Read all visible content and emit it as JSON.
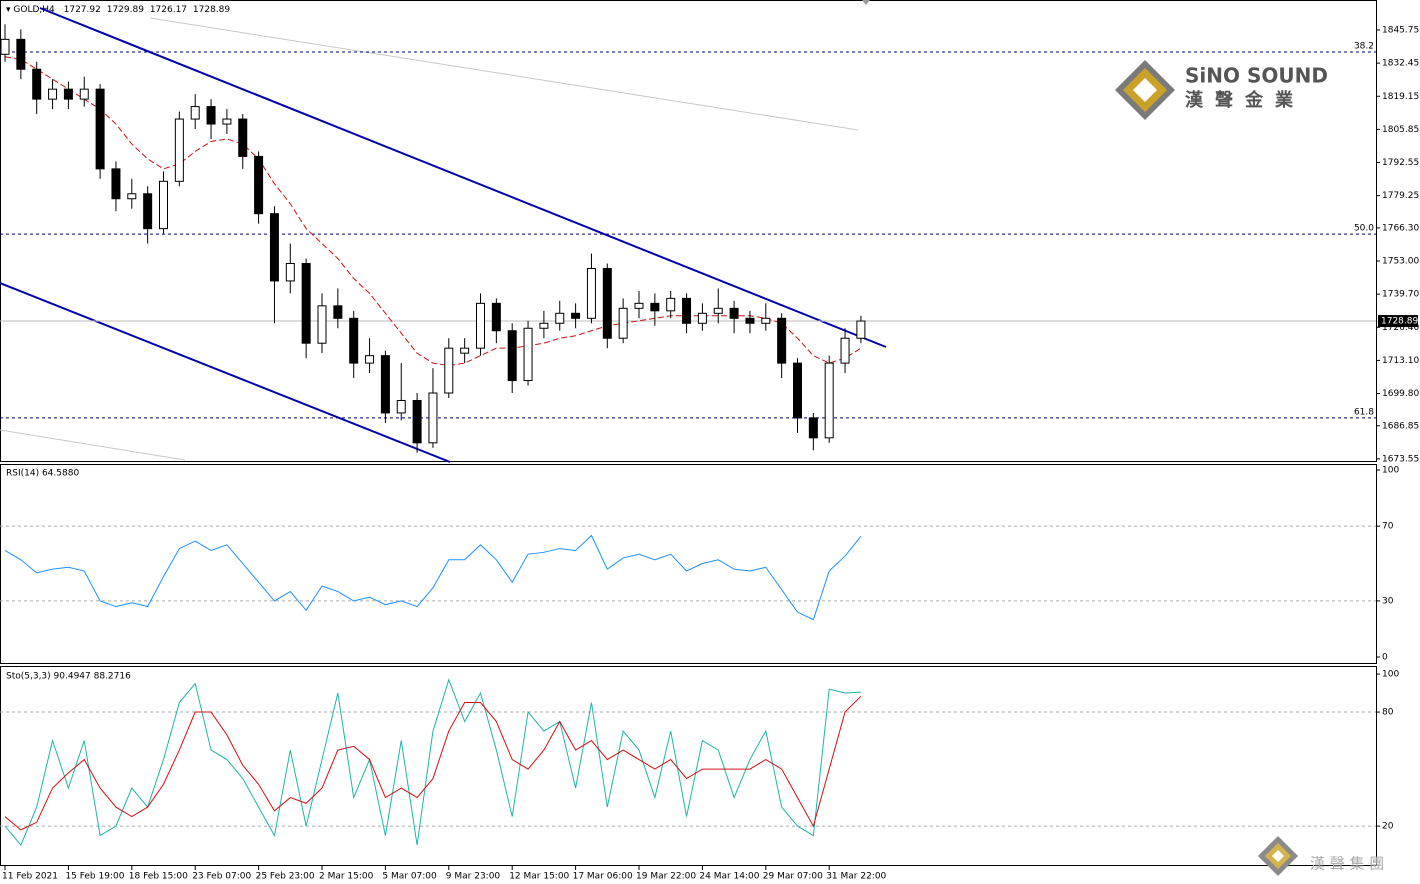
{
  "chart_data": {
    "type": "candlestick",
    "symbol": "GOLD,H4",
    "ohlc": [
      1727.92,
      1729.89,
      1726.17,
      1728.89
    ],
    "categories": [
      "11 Feb 2021",
      null,
      null,
      null,
      "15 Feb 19:00",
      null,
      null,
      null,
      "18 Feb 15:00",
      null,
      null,
      null,
      "23 Feb 07:00",
      null,
      null,
      null,
      "25 Feb 23:00",
      null,
      null,
      null,
      "2 Mar 15:00",
      null,
      null,
      null,
      "5 Mar 07:00",
      null,
      null,
      null,
      "9 Mar 23:00",
      null,
      null,
      null,
      "12 Mar 15:00",
      null,
      null,
      null,
      "17 Mar 06:00",
      null,
      null,
      null,
      "19 Mar 22:00",
      null,
      null,
      null,
      "24 Mar 14:00",
      null,
      null,
      null,
      "29 Mar 07:00",
      null,
      null,
      null,
      "31 Mar 22:00",
      null,
      null
    ],
    "candles": [
      [
        1836,
        1848,
        1833,
        1842
      ],
      [
        1842,
        1846,
        1826,
        1830
      ],
      [
        1830,
        1833,
        1812,
        1818
      ],
      [
        1818,
        1826,
        1814,
        1822
      ],
      [
        1822,
        1825,
        1814,
        1818
      ],
      [
        1818,
        1827,
        1815,
        1822
      ],
      [
        1822,
        1824,
        1786,
        1790
      ],
      [
        1790,
        1793,
        1773,
        1778
      ],
      [
        1778,
        1786,
        1774,
        1780
      ],
      [
        1780,
        1783,
        1760,
        1766
      ],
      [
        1766,
        1789,
        1764,
        1785
      ],
      [
        1785,
        1813,
        1783,
        1810
      ],
      [
        1810,
        1820,
        1806,
        1815
      ],
      [
        1815,
        1818,
        1802,
        1808
      ],
      [
        1808,
        1814,
        1804,
        1810
      ],
      [
        1810,
        1812,
        1790,
        1795
      ],
      [
        1795,
        1797,
        1768,
        1772
      ],
      [
        1772,
        1775,
        1728,
        1745
      ],
      [
        1745,
        1760,
        1740,
        1752
      ],
      [
        1752,
        1754,
        1714,
        1720
      ],
      [
        1720,
        1740,
        1716,
        1735
      ],
      [
        1735,
        1742,
        1726,
        1730
      ],
      [
        1730,
        1733,
        1706,
        1712
      ],
      [
        1712,
        1722,
        1708,
        1715
      ],
      [
        1715,
        1717,
        1688,
        1692
      ],
      [
        1692,
        1712,
        1689,
        1697
      ],
      [
        1697,
        1700,
        1676,
        1680
      ],
      [
        1680,
        1710,
        1678,
        1700
      ],
      [
        1700,
        1722,
        1698,
        1718
      ],
      [
        1716,
        1722,
        1712,
        1718
      ],
      [
        1718,
        1740,
        1715,
        1736
      ],
      [
        1736,
        1738,
        1720,
        1725
      ],
      [
        1725,
        1728,
        1700,
        1705
      ],
      [
        1705,
        1729,
        1703,
        1726
      ],
      [
        1726,
        1733,
        1722,
        1728
      ],
      [
        1728,
        1737,
        1725,
        1732
      ],
      [
        1732,
        1736,
        1726,
        1730
      ],
      [
        1730,
        1756,
        1728,
        1750
      ],
      [
        1750,
        1752,
        1718,
        1722
      ],
      [
        1722,
        1738,
        1720,
        1734
      ],
      [
        1734,
        1741,
        1730,
        1736
      ],
      [
        1736,
        1740,
        1727,
        1733
      ],
      [
        1733,
        1741,
        1730,
        1738
      ],
      [
        1738,
        1740,
        1724,
        1728
      ],
      [
        1728,
        1736,
        1725,
        1732
      ],
      [
        1732,
        1742,
        1728,
        1734
      ],
      [
        1734,
        1737,
        1724,
        1730
      ],
      [
        1730,
        1733,
        1724,
        1728
      ],
      [
        1728,
        1736,
        1725,
        1730
      ],
      [
        1730,
        1732,
        1706,
        1712
      ],
      [
        1712,
        1714,
        1684,
        1690
      ],
      [
        1690,
        1692,
        1677,
        1682
      ],
      [
        1682,
        1715,
        1680,
        1712
      ],
      [
        1712,
        1726,
        1708,
        1722
      ],
      [
        1722,
        1731,
        1720,
        1728.89
      ]
    ],
    "ma": {
      "color": "#d01010",
      "values": [
        1835,
        1834,
        1830,
        1826,
        1822,
        1818,
        1814,
        1808,
        1800,
        1794,
        1790,
        1792,
        1797,
        1801,
        1802,
        1800,
        1794,
        1784,
        1776,
        1766,
        1760,
        1754,
        1746,
        1740,
        1732,
        1724,
        1716,
        1712,
        1711,
        1712,
        1715,
        1718,
        1718,
        1719,
        1720,
        1722,
        1723,
        1725,
        1727,
        1728,
        1729,
        1730,
        1731,
        1731,
        1731,
        1731,
        1731,
        1731,
        1730,
        1728,
        1722,
        1715,
        1712,
        1714,
        1718
      ]
    },
    "ylim": [
      1672.3,
      1857.8
    ],
    "yticks": [
      1845.75,
      1832.45,
      1819.15,
      1805.85,
      1792.55,
      1779.25,
      {
        "value": 1766.3,
        "label": "1766.30"
      },
      {
        "value": 1753,
        "label": "1753.00"
      },
      {
        "value": 1739.7,
        "label": "1739.70"
      },
      {
        "value": 1726.4,
        "label": "1726.40"
      },
      {
        "value": 1713.1,
        "label": "1713.10"
      },
      {
        "value": 1699.8,
        "label": "1699.80"
      },
      1686.85,
      1673.55
    ],
    "last_price": 1728.89,
    "fib_levels": [
      {
        "label": "38.2",
        "price": 1836.9
      },
      {
        "label": "50.0",
        "price": 1763.8
      },
      {
        "label": "61.8",
        "price": 1690
      }
    ],
    "rsi": {
      "title": "RSI(14) 64.5880",
      "color": "#1e90ff",
      "values": [
        57,
        52,
        45,
        47,
        48,
        46,
        30,
        27,
        29,
        27,
        43,
        58,
        62,
        57,
        60,
        50,
        40,
        30,
        35,
        25,
        38,
        35,
        30,
        32,
        28,
        30,
        27,
        37,
        52,
        52,
        60,
        52,
        40,
        55,
        56,
        58,
        57,
        65,
        47,
        53,
        55,
        52,
        55,
        46,
        50,
        52,
        47,
        46,
        48,
        36,
        24,
        20,
        46,
        54,
        64.588
      ],
      "ylim": [
        -3.2,
        102.7
      ],
      "yticks": [
        100,
        70,
        30,
        0
      ],
      "levels": [
        70,
        30
      ]
    },
    "stoch": {
      "title": "Sto(5,3,3) 90.4947 88.2716",
      "k": {
        "color": "#20b2aa",
        "values": [
          20,
          10,
          30,
          65,
          40,
          65,
          15,
          20,
          40,
          30,
          55,
          85,
          95,
          60,
          55,
          45,
          30,
          15,
          60,
          20,
          55,
          90,
          35,
          55,
          15,
          65,
          10,
          70,
          97,
          75,
          90,
          60,
          25,
          80,
          70,
          75,
          40,
          85,
          30,
          70,
          60,
          35,
          70,
          25,
          65,
          60,
          35,
          55,
          70,
          30,
          20,
          15,
          92,
          90,
          90.4947
        ]
      },
      "d": {
        "color": "#d01010",
        "values": [
          25,
          18,
          22,
          40,
          48,
          55,
          40,
          30,
          25,
          30,
          42,
          60,
          80,
          80,
          68,
          52,
          42,
          28,
          35,
          32,
          40,
          60,
          62,
          55,
          35,
          40,
          35,
          45,
          70,
          85,
          85,
          75,
          55,
          50,
          60,
          75,
          60,
          65,
          55,
          60,
          55,
          50,
          55,
          45,
          50,
          50,
          50,
          50,
          55,
          50,
          35,
          20,
          50,
          80,
          88.2716
        ]
      },
      "ylim": [
        -1,
        103.7
      ],
      "yticks": [
        100,
        80,
        20
      ],
      "levels": [
        80,
        20
      ]
    },
    "logo": {
      "brand": "SiNO SOUND",
      "chinese": "漢聲金業",
      "footer": "漢 聲 集 團"
    }
  }
}
